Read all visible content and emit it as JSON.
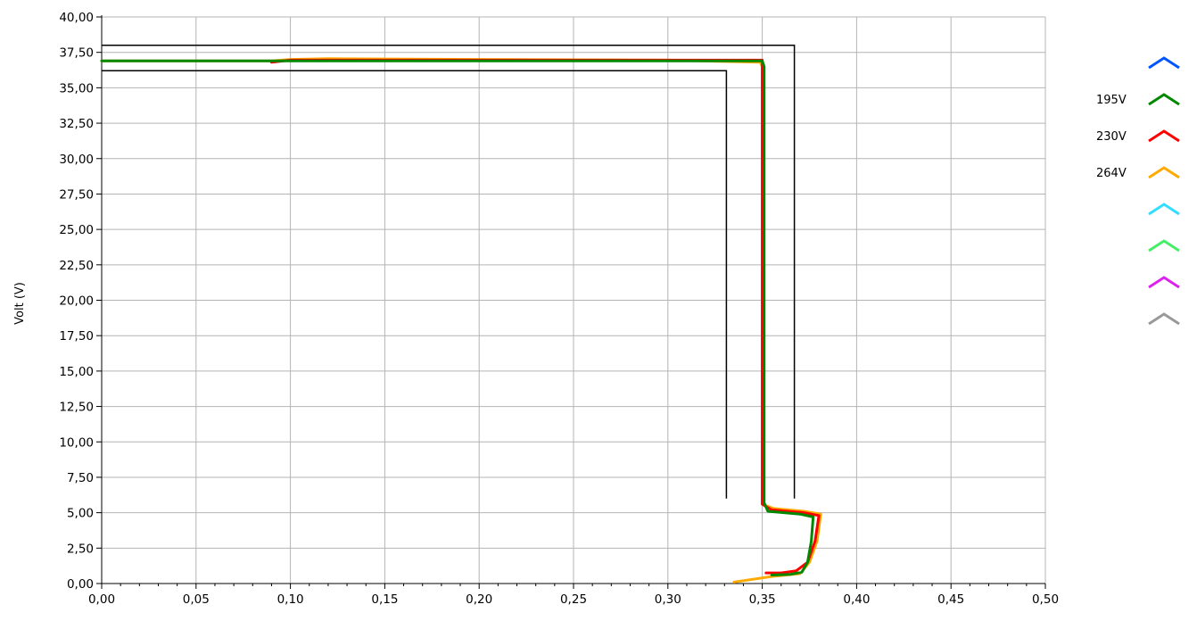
{
  "chart_data": {
    "type": "line",
    "xlabel": "",
    "ylabel": "Volt (V)",
    "xlim": [
      0,
      0.5
    ],
    "ylim": [
      0,
      40
    ],
    "grid": true,
    "legend_position": "right",
    "x_ticks": [
      "0,00",
      "0,05",
      "0,10",
      "0,15",
      "0,20",
      "0,25",
      "0,30",
      "0,35",
      "0,40",
      "0,45",
      "0,50"
    ],
    "y_ticks": [
      "0,00",
      "2,50",
      "5,00",
      "7,50",
      "10,00",
      "12,50",
      "15,00",
      "17,50",
      "20,00",
      "22,50",
      "25,00",
      "27,50",
      "30,00",
      "32,50",
      "35,00",
      "37,50",
      "40,00"
    ],
    "series": [
      {
        "name": "",
        "color": "#0055ff",
        "points": []
      },
      {
        "name": "195V",
        "color": "#008800",
        "points": [
          [
            0.0,
            36.9
          ],
          [
            0.1,
            36.9
          ],
          [
            0.2,
            36.9
          ],
          [
            0.3,
            36.9
          ],
          [
            0.35,
            36.9
          ],
          [
            0.351,
            36.5
          ],
          [
            0.351,
            30.0
          ],
          [
            0.351,
            20.0
          ],
          [
            0.351,
            10.0
          ],
          [
            0.351,
            5.7
          ],
          [
            0.353,
            5.1
          ],
          [
            0.37,
            4.9
          ],
          [
            0.377,
            4.7
          ],
          [
            0.376,
            3.0
          ],
          [
            0.374,
            1.5
          ],
          [
            0.371,
            0.8
          ],
          [
            0.365,
            0.65
          ],
          [
            0.355,
            0.6
          ]
        ]
      },
      {
        "name": "230V",
        "color": "#ff0000",
        "points": [
          [
            0.09,
            36.8
          ],
          [
            0.1,
            36.95
          ],
          [
            0.2,
            36.95
          ],
          [
            0.3,
            36.95
          ],
          [
            0.35,
            36.95
          ],
          [
            0.35,
            36.5
          ],
          [
            0.35,
            25.0
          ],
          [
            0.35,
            10.0
          ],
          [
            0.35,
            5.6
          ],
          [
            0.355,
            5.2
          ],
          [
            0.372,
            5.0
          ],
          [
            0.38,
            4.8
          ],
          [
            0.378,
            3.0
          ],
          [
            0.374,
            1.5
          ],
          [
            0.368,
            0.9
          ],
          [
            0.36,
            0.75
          ],
          [
            0.352,
            0.75
          ]
        ]
      },
      {
        "name": "264V",
        "color": "#ffaa00",
        "points": [
          [
            0.0,
            36.9
          ],
          [
            0.09,
            36.9
          ],
          [
            0.1,
            37.0
          ],
          [
            0.12,
            37.05
          ],
          [
            0.2,
            37.0
          ],
          [
            0.3,
            36.95
          ],
          [
            0.349,
            36.8
          ],
          [
            0.35,
            36.5
          ],
          [
            0.35,
            25.0
          ],
          [
            0.35,
            10.0
          ],
          [
            0.35,
            5.6
          ],
          [
            0.356,
            5.3
          ],
          [
            0.372,
            5.1
          ],
          [
            0.381,
            4.9
          ],
          [
            0.379,
            3.0
          ],
          [
            0.375,
            1.5
          ],
          [
            0.37,
            0.7
          ],
          [
            0.355,
            0.5
          ],
          [
            0.34,
            0.2
          ],
          [
            0.335,
            0.1
          ]
        ]
      },
      {
        "name": "",
        "color": "#33ddff",
        "points": []
      },
      {
        "name": "",
        "color": "#44ee66",
        "points": []
      },
      {
        "name": "",
        "color": "#dd22ee",
        "points": []
      },
      {
        "name": "",
        "color": "#999999",
        "points": []
      }
    ],
    "limit_lines": [
      {
        "color": "#000000",
        "points": [
          [
            0.0,
            38.0
          ],
          [
            0.367,
            38.0
          ],
          [
            0.367,
            6.0
          ]
        ]
      },
      {
        "color": "#000000",
        "points": [
          [
            0.0,
            36.2
          ],
          [
            0.331,
            36.2
          ],
          [
            0.331,
            6.0
          ]
        ]
      }
    ]
  }
}
